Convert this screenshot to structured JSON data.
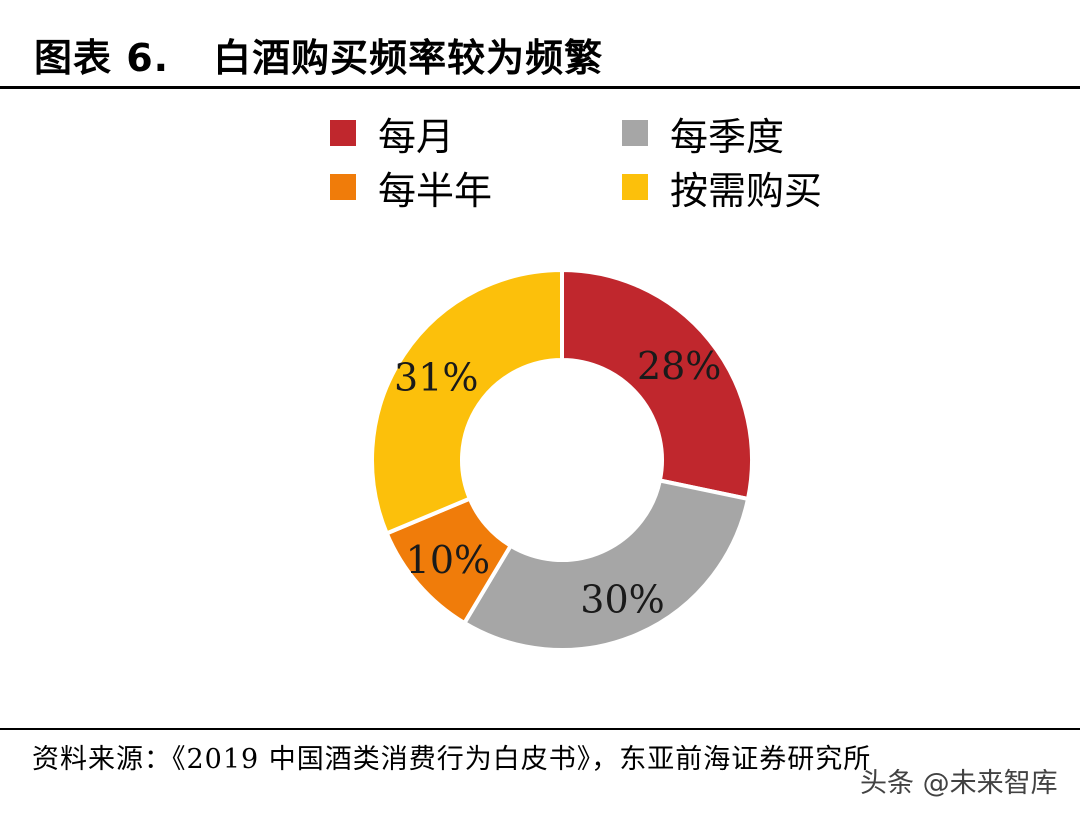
{
  "header": {
    "figure_label": "图表 6.",
    "title": "白酒购买频率较为频繁"
  },
  "chart_data": {
    "type": "pie",
    "style": "donut",
    "legend_placement": "top",
    "categories": [
      "每月",
      "每季度",
      "每半年",
      "按需购买"
    ],
    "values": [
      28,
      30,
      10,
      31
    ],
    "data_labels": [
      "28%",
      "30%",
      "10%",
      "31%"
    ],
    "colors": [
      "#c0272d",
      "#a6a6a6",
      "#f07c0a",
      "#fcc00b"
    ],
    "legend": [
      {
        "label": "每月",
        "color": "#c0272d"
      },
      {
        "label": "每季度",
        "color": "#a6a6a6"
      },
      {
        "label": "每半年",
        "color": "#f07c0a"
      },
      {
        "label": "按需购买",
        "color": "#fcc00b"
      }
    ]
  },
  "footer": {
    "source": "资料来源：《2019 中国酒类消费行为白皮书》，东亚前海证券研究所",
    "watermark": "头条 @未来智库"
  }
}
